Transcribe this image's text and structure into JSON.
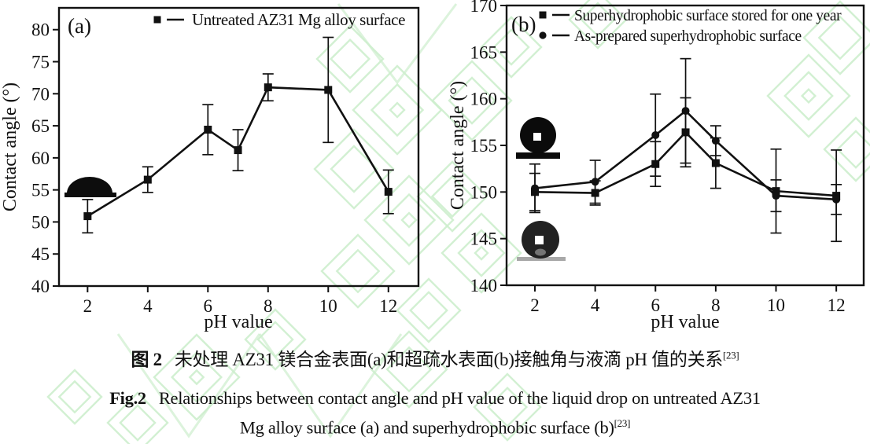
{
  "figure": {
    "ink_color": "#111111",
    "watermark_color": "#cdeecd",
    "background": "#ffffff"
  },
  "chart_data": [
    {
      "type": "line",
      "panel_label": "(a)",
      "xlabel": "pH value",
      "ylabel": "Contact angle (°)",
      "x_ticks": [
        2,
        4,
        6,
        8,
        10,
        12
      ],
      "y_ticks": [
        40,
        45,
        50,
        55,
        60,
        65,
        70,
        75,
        80
      ],
      "xlim": [
        1.05,
        13.0
      ],
      "ylim": [
        40,
        83.4
      ],
      "grid": false,
      "legend_position": "top-center-inside",
      "series": [
        {
          "name": "Untreated AZ31 Mg alloy surface",
          "marker": "square",
          "color": "#111111",
          "x": [
            2,
            4,
            6,
            7,
            8,
            10,
            12
          ],
          "y": [
            50.9,
            56.6,
            64.4,
            61.2,
            71.0,
            70.6,
            54.7
          ],
          "yerr": [
            2.6,
            2.0,
            3.9,
            3.2,
            2.1,
            8.2,
            3.4
          ]
        }
      ],
      "insets": [
        {
          "name": "sessile-drop-photo",
          "shape": "hemisphere-drop"
        }
      ]
    },
    {
      "type": "line",
      "panel_label": "(b)",
      "xlabel": "pH value",
      "ylabel": "Contact angle (°)",
      "x_ticks": [
        2,
        4,
        6,
        8,
        10,
        12
      ],
      "y_ticks": [
        140,
        145,
        150,
        155,
        160,
        165,
        170
      ],
      "xlim": [
        1.06,
        12.91
      ],
      "ylim": [
        140,
        170
      ],
      "grid": false,
      "legend_position": "top-left-inside",
      "series": [
        {
          "name": "Superhydrophobic surface stored for one year",
          "marker": "square",
          "color": "#111111",
          "x": [
            2,
            4,
            6,
            7,
            8,
            10,
            12
          ],
          "y": [
            150.0,
            149.9,
            153.0,
            156.4,
            153.1,
            150.1,
            149.6
          ],
          "yerr": [
            2.0,
            1.3,
            2.4,
            3.7,
            2.7,
            4.5,
            4.9
          ]
        },
        {
          "name": "As-prepared superhydrophobic surface",
          "marker": "circle",
          "color": "#111111",
          "x": [
            2,
            4,
            6,
            7,
            8,
            10,
            12
          ],
          "y": [
            150.4,
            151.1,
            156.1,
            158.7,
            155.5,
            149.6,
            149.2
          ],
          "yerr": [
            2.6,
            2.3,
            4.4,
            5.6,
            1.6,
            1.7,
            1.6
          ]
        }
      ],
      "insets": [
        {
          "name": "superhydrophobic-drop-photo-stored",
          "shape": "sphere-drop-black"
        },
        {
          "name": "superhydrophobic-drop-photo-as-prepared",
          "shape": "sphere-drop-gray"
        }
      ]
    }
  ],
  "captions": {
    "zh_prefix": "图 2",
    "zh_text": "未处理 AZ31 镁合金表面(a)和超疏水表面(b)接触角与液滴 pH 值的关系",
    "zh_ref": "[23]",
    "en_prefix": "Fig.2",
    "en_line1": "Relationships between contact angle and pH value of the liquid drop on untreated AZ31",
    "en_line2": "Mg alloy surface (a) and superhydrophobic surface (b)",
    "en_ref": "[23]"
  }
}
